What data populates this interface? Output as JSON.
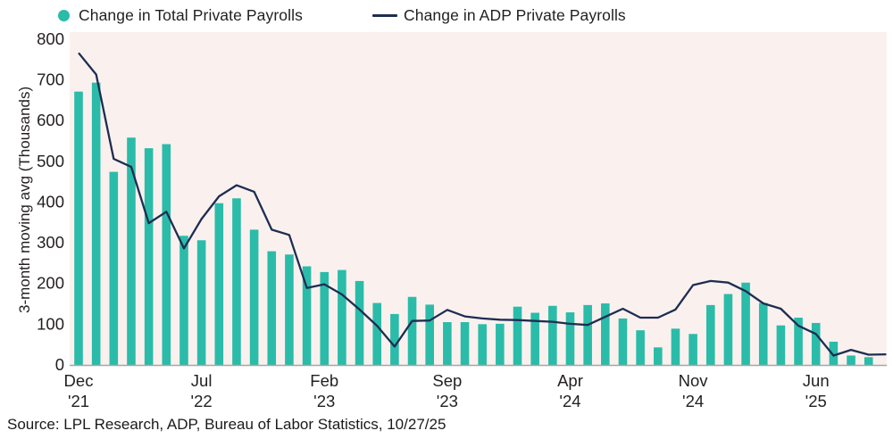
{
  "legend": {
    "bar_series_label": "Change in Total Private Payrolls",
    "line_series_label": "Change in ADP Private Payrolls"
  },
  "y_axis_title": "3-month moving avg (Thousands)",
  "source_line": "Source: LPL Research, ADP, Bureau of Labor Statistics, 10/27/25",
  "colors": {
    "bar": "#2abca9",
    "line": "#1e2d52",
    "plot_background": "#faf1ee",
    "axis_line": "#a6a6a6",
    "text": "#231f20",
    "page_background": "#ffffff"
  },
  "chart_data": {
    "type": "bar+line combo, monthly",
    "title": "",
    "xlabel": "",
    "ylabel": "3-month moving avg (Thousands)",
    "ylim": [
      0,
      800
    ],
    "yticks": [
      0,
      100,
      200,
      300,
      400,
      500,
      600,
      700,
      800
    ],
    "grid": "off",
    "legend_position": "top-left",
    "months": [
      "Dec '21",
      "Jan '22",
      "Feb '22",
      "Mar '22",
      "Apr '22",
      "May '22",
      "Jun '22",
      "Jul '22",
      "Aug '22",
      "Sep '22",
      "Oct '22",
      "Nov '22",
      "Dec '22",
      "Jan '23",
      "Feb '23",
      "Mar '23",
      "Apr '23",
      "May '23",
      "Jun '23",
      "Jul '23",
      "Aug '23",
      "Sep '23",
      "Oct '23",
      "Nov '23",
      "Dec '23",
      "Jan '24",
      "Feb '24",
      "Mar '24",
      "Apr '24",
      "May '24",
      "Jun '24",
      "Jul '24",
      "Aug '24",
      "Sep '24",
      "Oct '24",
      "Nov '24",
      "Dec '24",
      "Jan '25",
      "Feb '25",
      "Mar '25",
      "Apr '25",
      "May '25",
      "Jun '25",
      "Jul '25",
      "Aug '25",
      "Sep '25",
      "Oct '25"
    ],
    "xtick_labels": [
      {
        "index": 0,
        "month": "Dec",
        "year": "'21"
      },
      {
        "index": 7,
        "month": "Jul",
        "year": "'22"
      },
      {
        "index": 14,
        "month": "Feb",
        "year": "'23"
      },
      {
        "index": 21,
        "month": "Sep",
        "year": "'23"
      },
      {
        "index": 28,
        "month": "Apr",
        "year": "'24"
      },
      {
        "index": 35,
        "month": "Nov",
        "year": "'24"
      },
      {
        "index": 42,
        "month": "Jun",
        "year": "'25"
      }
    ],
    "series": [
      {
        "name": "Change in Total Private Payrolls",
        "type": "bar",
        "color": "#2abca9",
        "values": [
          670,
          692,
          473,
          557,
          531,
          541,
          316,
          305,
          396,
          408,
          331,
          278,
          270,
          241,
          227,
          232,
          205,
          151,
          124,
          166,
          147,
          104,
          104,
          99,
          100,
          142,
          127,
          144,
          128,
          146,
          150,
          113,
          84,
          42,
          88,
          75,
          146,
          173,
          201,
          151,
          96,
          115,
          102,
          56,
          22,
          18,
          null
        ]
      },
      {
        "name": "Change in ADP Private Payrolls",
        "type": "line",
        "color": "#1e2d52",
        "values": [
          765,
          712,
          505,
          485,
          347,
          375,
          285,
          357,
          413,
          440,
          424,
          331,
          318,
          188,
          197,
          172,
          135,
          95,
          44,
          107,
          108,
          134,
          118,
          113,
          110,
          109,
          107,
          105,
          100,
          97,
          117,
          137,
          115,
          115,
          135,
          195,
          205,
          201,
          180,
          150,
          137,
          95,
          75,
          22,
          36,
          24,
          25
        ]
      }
    ]
  }
}
